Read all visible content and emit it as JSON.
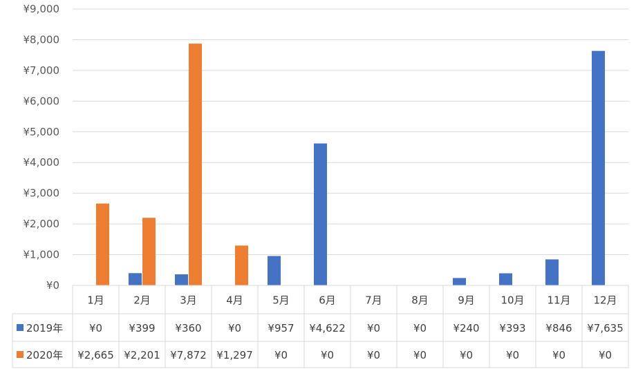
{
  "chart_data": {
    "type": "bar",
    "categories": [
      "1月",
      "2月",
      "3月",
      "4月",
      "5月",
      "6月",
      "7月",
      "8月",
      "9月",
      "10月",
      "11月",
      "12月"
    ],
    "series": [
      {
        "name": "2019年",
        "color": "#4472C4",
        "values": [
          0,
          399,
          360,
          0,
          957,
          4622,
          0,
          0,
          240,
          393,
          846,
          7635
        ],
        "labels": [
          "¥0",
          "¥399",
          "¥360",
          "¥0",
          "¥957",
          "¥4,622",
          "¥0",
          "¥0",
          "¥240",
          "¥393",
          "¥846",
          "¥7,635"
        ]
      },
      {
        "name": "2020年",
        "color": "#ED7D31",
        "values": [
          2665,
          2201,
          7872,
          1297,
          0,
          0,
          0,
          0,
          0,
          0,
          0,
          0
        ],
        "labels": [
          "¥2,665",
          "¥2,201",
          "¥7,872",
          "¥1,297",
          "¥0",
          "¥0",
          "¥0",
          "¥0",
          "¥0",
          "¥0",
          "¥0",
          "¥0"
        ]
      }
    ],
    "ylim": [
      0,
      9000
    ],
    "yticks": [
      0,
      1000,
      2000,
      3000,
      4000,
      5000,
      6000,
      7000,
      8000,
      9000
    ],
    "ytick_labels": [
      "¥0",
      "¥1,000",
      "¥2,000",
      "¥3,000",
      "¥4,000",
      "¥5,000",
      "¥6,000",
      "¥7,000",
      "¥8,000",
      "¥9,000"
    ],
    "grid": true,
    "legend": "data-table"
  }
}
